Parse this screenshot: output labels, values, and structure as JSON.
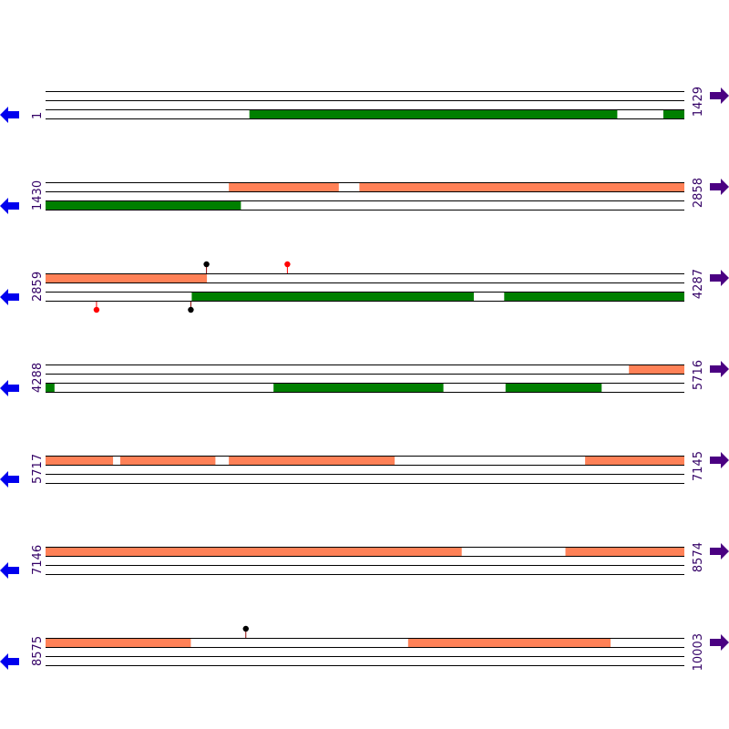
{
  "colors": {
    "forward_feature": "#ff8157",
    "reverse_feature": "#007f00",
    "line": "#000000",
    "left_arrow": "#0000ee",
    "right_arrow": "#4b0082",
    "coord_text": "#330066",
    "marker_red": "#ff0000",
    "marker_black": "#000000"
  },
  "icons": {
    "left": "arrow-left-icon",
    "right": "arrow-right-icon"
  },
  "rows": [
    {
      "start_label": "1",
      "end_label": "1429",
      "start": 1,
      "end": 1429,
      "forward": [],
      "reverse": [
        [
          457,
          1279
        ],
        [
          1383,
          1429
        ]
      ],
      "markers": []
    },
    {
      "start_label": "1430",
      "end_label": "2858",
      "start": 1430,
      "end": 2858,
      "forward": [
        [
          1840,
          2085
        ],
        [
          2132,
          2858
        ]
      ],
      "reverse": [
        [
          1430,
          1866
        ]
      ],
      "markers": []
    },
    {
      "start_label": "2859",
      "end_label": "4287",
      "start": 2859,
      "end": 4287,
      "forward": [
        [
          2859,
          3219
        ]
      ],
      "reverse": [
        [
          3186,
          3816
        ],
        [
          3885,
          4287
        ]
      ],
      "markers": [
        {
          "pos": 3219,
          "strand": "top",
          "color": "black"
        },
        {
          "pos": 3400,
          "strand": "top",
          "color": "red"
        },
        {
          "pos": 2973,
          "strand": "bottom",
          "color": "red"
        },
        {
          "pos": 3184,
          "strand": "bottom",
          "color": "black"
        }
      ]
    },
    {
      "start_label": "4288",
      "end_label": "5716",
      "start": 4288,
      "end": 5716,
      "forward": [
        [
          5593,
          5716
        ]
      ],
      "reverse": [
        [
          4288,
          4307
        ],
        [
          4798,
          5177
        ],
        [
          5317,
          5531
        ]
      ],
      "markers": []
    },
    {
      "start_label": "5717",
      "end_label": "7145",
      "start": 5717,
      "end": 7145,
      "forward": [
        [
          5717,
          5867
        ],
        [
          5884,
          6096
        ],
        [
          6127,
          6497
        ],
        [
          6924,
          7145
        ]
      ],
      "reverse": [],
      "markers": []
    },
    {
      "start_label": "7146",
      "end_label": "8574",
      "start": 7146,
      "end": 8574,
      "forward": [
        [
          7146,
          8076
        ],
        [
          8309,
          8574
        ]
      ],
      "reverse": [],
      "markers": []
    },
    {
      "start_label": "8575",
      "end_label": "10003",
      "start": 8575,
      "end": 10003,
      "forward": [
        [
          8575,
          8899
        ],
        [
          9386,
          9838
        ]
      ],
      "reverse": [],
      "markers": [
        {
          "pos": 9023,
          "strand": "top",
          "color": "black"
        }
      ]
    }
  ]
}
